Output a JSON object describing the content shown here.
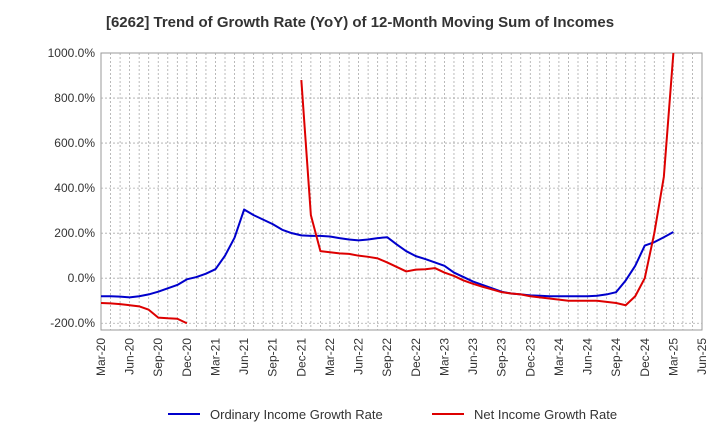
{
  "chart_data": {
    "type": "line",
    "title": "[6262]  Trend of Growth Rate (YoY) of 12-Month Moving Sum of Incomes",
    "xlabel": "",
    "ylabel": "",
    "ylim": [
      -230,
      1000
    ],
    "y_ticks": [
      -200,
      0,
      200,
      400,
      600,
      800,
      1000
    ],
    "y_tick_labels": [
      "-200.0%",
      "0.0%",
      "200.0%",
      "400.0%",
      "600.0%",
      "800.0%",
      "1000.0%"
    ],
    "x_tick_labels": [
      "Mar-20",
      "Jun-20",
      "Sep-20",
      "Dec-20",
      "Mar-21",
      "Jun-21",
      "Sep-21",
      "Dec-21",
      "Mar-22",
      "Jun-22",
      "Sep-22",
      "Dec-22",
      "Mar-23",
      "Jun-23",
      "Sep-23",
      "Dec-23",
      "Mar-24",
      "Jun-24",
      "Sep-24",
      "Dec-24",
      "Mar-25",
      "Jun-25"
    ],
    "x_start": "Mar-20",
    "grid": true,
    "legend_position": "bottom",
    "series": [
      {
        "name": "Ordinary Income Growth Rate",
        "color": "#0000cc",
        "values": [
          -80,
          -80,
          -82,
          -85,
          -80,
          -72,
          -60,
          -45,
          -30,
          -5,
          5,
          20,
          40,
          100,
          180,
          305,
          280,
          260,
          240,
          215,
          200,
          190,
          188,
          188,
          185,
          178,
          172,
          168,
          172,
          178,
          182,
          150,
          120,
          98,
          85,
          70,
          55,
          25,
          5,
          -15,
          -30,
          -45,
          -60,
          -68,
          -72,
          -76,
          -78,
          -80,
          -80,
          -80,
          -80,
          -80,
          -78,
          -72,
          -62,
          -10,
          55,
          145,
          160,
          182,
          205
        ]
      },
      {
        "name": "Net Income Growth Rate",
        "color": "#dd0000",
        "values": [
          -110,
          -112,
          -115,
          -120,
          -125,
          -140,
          -175,
          -178,
          -180,
          -200,
          null,
          null,
          null,
          null,
          null,
          null,
          null,
          null,
          null,
          null,
          null,
          880,
          280,
          120,
          115,
          110,
          108,
          100,
          95,
          88,
          70,
          50,
          30,
          38,
          40,
          45,
          25,
          10,
          -10,
          -25,
          -38,
          -50,
          -62,
          -68,
          -72,
          -80,
          -85,
          -90,
          -95,
          -100,
          -100,
          -100,
          -100,
          -105,
          -110,
          -120,
          -80,
          0,
          200,
          450,
          1000
        ]
      }
    ]
  }
}
